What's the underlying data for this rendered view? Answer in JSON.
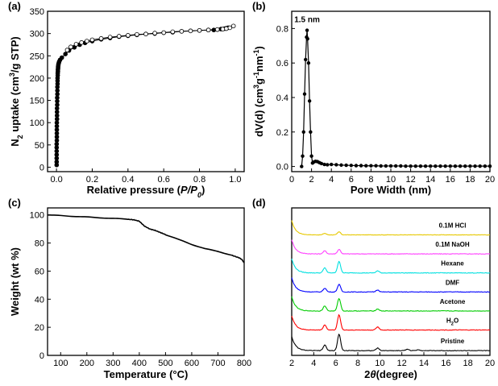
{
  "chart_data": [
    {
      "panel_label": "(a)",
      "type": "scatter",
      "xlabel_parts": [
        "Relative pressure (",
        "P/P",
        "0",
        ")"
      ],
      "ylabel_parts": [
        "N",
        "2",
        " uptake (cm",
        "3",
        "/g STP)"
      ],
      "xlim": [
        -0.05,
        1.05
      ],
      "ylim": [
        -10,
        350
      ],
      "xticks": [
        "0.0",
        "0.2",
        "0.4",
        "0.6",
        "0.8",
        "1.0"
      ],
      "yticks": [
        "0",
        "50",
        "100",
        "150",
        "200",
        "250",
        "300",
        "350"
      ],
      "series": [
        {
          "marker": "filled",
          "x": [
            0.001,
            0.001,
            0.001,
            0.001,
            0.001,
            0.001,
            0.001,
            0.002,
            0.002,
            0.002,
            0.002,
            0.002,
            0.002,
            0.003,
            0.003,
            0.003,
            0.003,
            0.004,
            0.004,
            0.004,
            0.005,
            0.005,
            0.005,
            0.006,
            0.006,
            0.006,
            0.007,
            0.007,
            0.008,
            0.008,
            0.009,
            0.009,
            0.01,
            0.011,
            0.013,
            0.015,
            0.02,
            0.03,
            0.05,
            0.07,
            0.1,
            0.13,
            0.16,
            0.2,
            0.25,
            0.3,
            0.35,
            0.4,
            0.45,
            0.5,
            0.55,
            0.6,
            0.65,
            0.7,
            0.75,
            0.8,
            0.85,
            0.88,
            0.9,
            0.92,
            0.94,
            0.95,
            0.96
          ],
          "y": [
            5,
            12,
            20,
            28,
            36,
            44,
            52,
            60,
            68,
            76,
            84,
            92,
            100,
            108,
            116,
            124,
            132,
            140,
            148,
            156,
            164,
            172,
            180,
            187,
            194,
            200,
            206,
            211,
            215,
            219,
            222,
            225,
            228,
            231,
            234,
            237,
            241,
            246,
            254,
            262,
            269,
            275,
            279,
            283,
            287,
            290,
            293,
            295,
            297,
            299,
            300,
            302,
            303,
            305,
            306,
            307,
            308,
            308,
            309,
            310,
            311,
            312,
            313
          ]
        },
        {
          "marker": "open",
          "x": [
            0.99,
            0.97,
            0.95,
            0.93,
            0.9,
            0.85,
            0.8,
            0.75,
            0.7,
            0.65,
            0.6,
            0.55,
            0.5,
            0.45,
            0.4,
            0.35,
            0.3,
            0.25,
            0.2,
            0.17,
            0.14,
            0.11,
            0.08,
            0.06
          ],
          "y": [
            317,
            313,
            311,
            310,
            309,
            308,
            307,
            306,
            305,
            304,
            302,
            301,
            299,
            298,
            296,
            294,
            292,
            289,
            286,
            283,
            280,
            276,
            270,
            263
          ]
        }
      ]
    },
    {
      "panel_label": "(b)",
      "type": "line",
      "xlabel": "Pore Width (nm)",
      "ylabel_parts": [
        "dV(d) (cm",
        "3",
        "g",
        "-1",
        "nm",
        "-1",
        ")"
      ],
      "xlim": [
        0,
        20
      ],
      "ylim": [
        -0.03,
        0.9
      ],
      "xticks": [
        "0",
        "2",
        "4",
        "6",
        "8",
        "10",
        "12",
        "14",
        "16",
        "18",
        "20"
      ],
      "yticks": [
        "0.0",
        "0.2",
        "0.4",
        "0.6",
        "0.8"
      ],
      "annotation": "1.5 nm",
      "x": [
        1.0,
        1.1,
        1.2,
        1.3,
        1.4,
        1.5,
        1.55,
        1.6,
        1.7,
        1.8,
        1.9,
        2.0,
        2.1,
        2.2,
        2.4,
        2.6,
        2.8,
        3.0,
        3.3,
        3.6,
        4.0,
        4.5,
        5.0,
        5.5,
        6.0,
        6.5,
        7.0,
        7.5,
        8.0,
        8.5,
        9.0,
        9.5,
        10.0,
        10.5,
        11.0,
        11.5,
        12.0,
        12.5,
        13.0,
        13.5,
        14.0,
        14.5,
        15.0,
        15.5,
        16.0,
        16.5,
        17.0,
        17.5,
        18.0,
        18.5,
        19.0,
        19.5,
        20.0
      ],
      "y": [
        0.0,
        0.06,
        0.2,
        0.42,
        0.62,
        0.75,
        0.79,
        0.74,
        0.6,
        0.38,
        0.2,
        0.06,
        0.02,
        0.025,
        0.03,
        0.028,
        0.022,
        0.017,
        0.012,
        0.01,
        0.012,
        0.01,
        0.008,
        0.007,
        0.006,
        0.005,
        0.005,
        0.004,
        0.004,
        0.004,
        0.003,
        0.003,
        0.003,
        0.003,
        0.003,
        0.002,
        0.002,
        0.002,
        0.002,
        0.002,
        0.002,
        0.002,
        0.002,
        0.002,
        0.002,
        0.002,
        0.002,
        0.002,
        0.002,
        0.002,
        0.002,
        0.002,
        0.002
      ]
    },
    {
      "panel_label": "(c)",
      "type": "line",
      "xlabel": "Temperature (°C)",
      "ylabel": "Weight (wt %)",
      "xlim": [
        50,
        800
      ],
      "ylim": [
        0,
        105
      ],
      "xticks": [
        "100",
        "200",
        "300",
        "400",
        "500",
        "600",
        "700",
        "800"
      ],
      "yticks": [
        "0",
        "20",
        "40",
        "60",
        "80",
        "100"
      ],
      "x": [
        50,
        100,
        150,
        200,
        250,
        300,
        350,
        380,
        400,
        420,
        440,
        460,
        480,
        500,
        550,
        600,
        650,
        700,
        750,
        780,
        790,
        800
      ],
      "y": [
        100,
        99.5,
        99,
        98.5,
        98,
        97.5,
        97,
        96.5,
        95.5,
        92,
        90,
        89,
        87.5,
        86,
        82.5,
        79,
        76,
        74,
        71.5,
        69.5,
        68.5,
        66
      ]
    },
    {
      "panel_label": "(d)",
      "type": "line",
      "xlabel_parts": [
        "2",
        "θ",
        "(degree)"
      ],
      "xlim": [
        2,
        20
      ],
      "xticks": [
        "2",
        "4",
        "6",
        "8",
        "10",
        "12",
        "14",
        "16",
        "18",
        "20"
      ],
      "series": [
        {
          "name": "0.1M HCl",
          "color": "#e6c800",
          "offset": 7.6,
          "peaks": [
            [
              5.0,
              0.6
            ],
            [
              6.3,
              1.2
            ]
          ],
          "noise": 0.2
        },
        {
          "name": "0.1M NaOH",
          "color": "#ff40ff",
          "offset": 6.4,
          "peaks": [
            [
              5.0,
              1.2
            ],
            [
              6.3,
              1.8
            ]
          ],
          "noise": 0.3
        },
        {
          "name": "Hexane",
          "color": "#00e0e0",
          "offset": 5.2,
          "peaks": [
            [
              5.0,
              2.0
            ],
            [
              6.3,
              4.5
            ],
            [
              9.8,
              0.8
            ]
          ],
          "noise": 0.3
        },
        {
          "name": "DMF",
          "color": "#0000ff",
          "offset": 4.0,
          "peaks": [
            [
              5.0,
              1.5
            ],
            [
              6.3,
              3.0
            ],
            [
              9.8,
              0.8
            ]
          ],
          "noise": 0.3
        },
        {
          "name": "Acetone",
          "color": "#00cc00",
          "offset": 2.8,
          "peaks": [
            [
              5.0,
              2.0
            ],
            [
              6.3,
              5.0
            ],
            [
              9.8,
              0.8
            ]
          ],
          "noise": 0.3
        },
        {
          "name": "H",
          "sub": "2",
          "name2": "O",
          "color": "#ff0000",
          "offset": 1.6,
          "peaks": [
            [
              5.0,
              2.0
            ],
            [
              6.3,
              6.0
            ],
            [
              9.8,
              1.2
            ]
          ],
          "noise": 0.3
        },
        {
          "name": "Pristine",
          "color": "#000000",
          "offset": 0.3,
          "peaks": [
            [
              5.0,
              2.2
            ],
            [
              6.3,
              6.5
            ],
            [
              9.8,
              1.0
            ],
            [
              12.5,
              0.6
            ],
            [
              13.5,
              0.4
            ]
          ],
          "noise": 0.3
        }
      ]
    }
  ]
}
